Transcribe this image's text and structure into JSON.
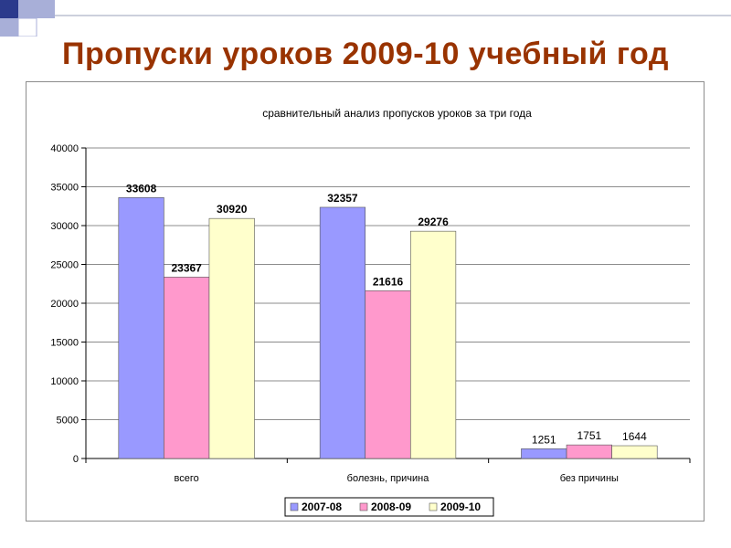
{
  "slide": {
    "title": "Пропуски уроков 2009-10 учебный год"
  },
  "colors": {
    "title": "#993300",
    "deco_dark": "#2b3a8c",
    "deco_light": "#a8afd8",
    "rule": "#9aa0b8"
  },
  "chart_data": {
    "type": "bar",
    "title": "сравнительный анализ пропусков уроков за три года",
    "categories": [
      "всего",
      "болезнь, причина",
      "без причины"
    ],
    "series": [
      {
        "name": "2007-08",
        "values": [
          33608,
          32357,
          1251
        ],
        "color": "#9999ff"
      },
      {
        "name": "2008-09",
        "values": [
          23367,
          21616,
          1751
        ],
        "color": "#ff99cc"
      },
      {
        "name": "2009-10",
        "values": [
          30920,
          29276,
          1644
        ],
        "color": "#ffffcc"
      }
    ],
    "ylim": [
      0,
      40000
    ],
    "yticks": [
      0,
      5000,
      10000,
      15000,
      20000,
      25000,
      30000,
      35000,
      40000
    ],
    "grid": true,
    "legend_position": "bottom",
    "xlabel": "",
    "ylabel": ""
  }
}
